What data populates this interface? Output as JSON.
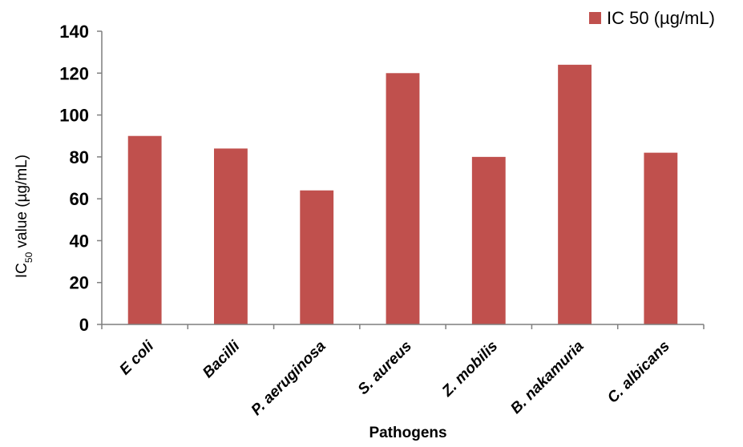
{
  "chart_data": {
    "type": "bar",
    "categories": [
      "E coli",
      "Bacilli",
      "P. aeruginosa",
      "S. aureus",
      "Z. mobilis",
      "B. nakamuria",
      "C. albicans"
    ],
    "series": [
      {
        "name": "IC 50 (µg/mL)",
        "values": [
          90,
          84,
          64,
          120,
          80,
          124,
          82
        ]
      }
    ],
    "title": "",
    "xlabel": "Pathogens",
    "ylabel_main": "IC",
    "ylabel_sub": "50",
    "ylabel_rest": " value (µg/mL)",
    "ylim": [
      0,
      140
    ],
    "yticks": [
      "0",
      "20",
      "40",
      "60",
      "80",
      "100",
      "120",
      "140"
    ],
    "grid": false,
    "legend": {
      "position": "top-right",
      "label": "IC 50 (µg/mL)"
    },
    "bar_color": "#c0504d"
  }
}
